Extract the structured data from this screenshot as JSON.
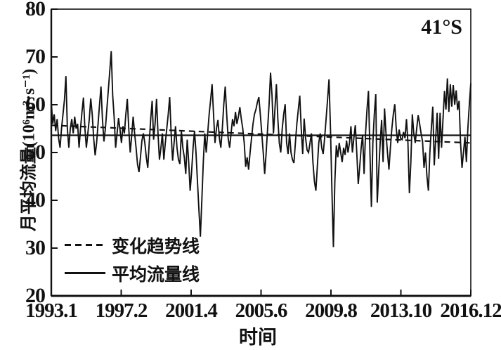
{
  "figure": {
    "background": "#ffffff",
    "ink_color": "#111111",
    "annotation": "41°S"
  },
  "chart_data": {
    "type": "line",
    "title": "",
    "xlabel": "时间",
    "ylabel": "月平均流量(10⁶m³·s⁻¹)",
    "annotation": "41°S",
    "ylim": [
      20,
      80
    ],
    "yticks": [
      20,
      30,
      40,
      50,
      60,
      70,
      80
    ],
    "xticks": [
      "1993.1",
      "1997.2",
      "2001.4",
      "2005.6",
      "2009.8",
      "2013.10",
      "2016.12"
    ],
    "grid": false,
    "legend_position": "lower-left",
    "legend": [
      {
        "label": "变化趋势线",
        "line": "dashed"
      },
      {
        "label": "平均流量线",
        "line": "solid"
      }
    ],
    "series": [
      {
        "name": "月平均流量",
        "style": "solid",
        "interval": "monthly",
        "start": "1993.1",
        "end": "2016.12",
        "values": [
          60.5,
          56,
          58,
          54.5,
          57,
          53,
          51,
          55,
          58,
          61,
          66,
          55,
          51,
          55,
          57,
          54,
          57.5,
          55,
          56,
          51,
          55,
          58.5,
          61.5,
          55,
          51,
          54,
          57,
          61.3,
          58,
          53,
          49.4,
          52,
          56,
          60,
          63.8,
          57,
          52.3,
          55,
          59,
          63,
          67,
          71.2,
          62,
          57.4,
          51,
          54,
          57.2,
          54.8,
          52,
          55.5,
          54,
          58,
          61.2,
          55,
          50,
          53.5,
          57.5,
          54,
          51,
          47.5,
          45.9,
          49,
          52.5,
          54,
          52,
          49,
          46.8,
          52,
          57,
          60.8,
          52.7,
          56,
          61.2,
          54,
          48.5,
          51,
          54,
          48.5,
          52,
          55,
          58,
          61.6,
          54,
          48.3,
          52,
          55.5,
          51,
          48.5,
          47.6,
          54.5,
          51,
          49,
          45.5,
          52.7,
          48,
          42,
          46,
          51,
          54.5,
          50,
          44,
          38,
          32.4,
          40,
          48,
          54,
          50,
          54,
          58,
          61,
          64.3,
          58,
          52,
          55,
          56.8,
          53,
          51,
          55,
          60,
          63.8,
          58,
          53,
          51,
          54,
          57,
          55.5,
          58.5,
          56,
          57.5,
          59.5,
          57,
          55,
          52,
          47,
          49,
          46.4,
          50,
          53,
          56,
          58,
          59,
          60.5,
          61.6,
          58,
          54,
          50,
          45.5,
          50,
          55,
          60,
          66.7,
          62,
          54,
          59,
          64.3,
          57,
          52,
          50,
          55,
          58,
          60.1,
          52,
          49.7,
          54,
          50,
          48.5,
          47.8,
          52,
          56,
          59,
          61.9,
          55,
          49.7,
          57.1,
          53,
          50.5,
          50,
          52,
          54,
          48,
          44,
          42,
          47,
          52,
          54,
          51,
          49.7,
          53,
          57,
          61,
          65.3,
          55,
          42,
          30.2,
          44,
          51.5,
          49,
          52,
          50,
          48,
          51,
          49.5,
          52.5,
          50,
          52,
          55.5,
          50,
          53,
          55.7,
          50,
          43.4,
          47,
          51,
          53.7,
          45.5,
          54,
          59,
          62.9,
          50,
          38.6,
          52,
          58,
          62.2,
          39.5,
          46,
          52,
          56.8,
          48,
          59.2,
          54,
          50,
          46.4,
          51,
          55,
          58,
          60.1,
          55,
          52,
          54.8,
          53,
          52.7,
          54.3,
          53,
          57,
          52,
          41.5,
          48,
          58,
          54,
          52,
          55,
          57.8,
          56,
          54,
          52.3,
          46.8,
          50,
          45,
          42,
          50,
          55,
          59.6,
          47.3,
          53,
          58.3,
          48.7,
          58.3,
          51,
          57,
          62.9,
          59,
          65.5,
          58.5,
          64.3,
          59.6,
          64.1,
          60,
          63,
          58.9,
          60.8,
          52,
          46.8,
          50,
          53.3,
          48,
          55,
          60,
          64.5
        ]
      },
      {
        "name": "变化趋势线",
        "style": "dashed",
        "trend_endpoints": [
          55.7,
          52.0
        ]
      },
      {
        "name": "平均流量线",
        "style": "solid-horizontal",
        "value": 53.6
      }
    ]
  }
}
